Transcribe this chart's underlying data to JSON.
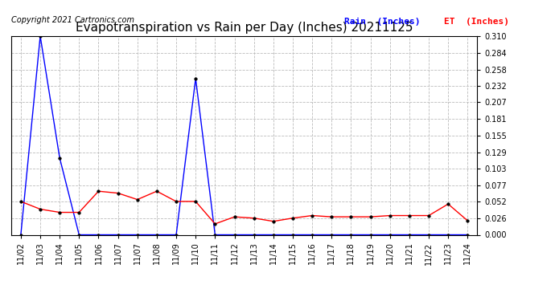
{
  "title": "Evapotranspiration vs Rain per Day (Inches) 20211125",
  "copyright": "Copyright 2021 Cartronics.com",
  "legend_rain": "Rain  (Inches)",
  "legend_et": "ET  (Inches)",
  "x_labels": [
    "11/02",
    "11/03",
    "11/04",
    "11/05",
    "11/06",
    "11/07",
    "11/07",
    "11/08",
    "11/09",
    "11/10",
    "11/11",
    "11/12",
    "11/13",
    "11/14",
    "11/15",
    "11/16",
    "11/17",
    "11/18",
    "11/19",
    "11/20",
    "11/21",
    "11/22",
    "11/23",
    "11/24"
  ],
  "rain": [
    0.0,
    0.31,
    0.12,
    0.0,
    0.0,
    0.0,
    0.0,
    0.0,
    0.0,
    0.244,
    0.0,
    0.0,
    0.0,
    0.0,
    0.0,
    0.0,
    0.0,
    0.0,
    0.0,
    0.0,
    0.0,
    0.0,
    0.0,
    0.0
  ],
  "et": [
    0.052,
    0.04,
    0.035,
    0.035,
    0.068,
    0.065,
    0.055,
    0.068,
    0.052,
    0.052,
    0.017,
    0.028,
    0.026,
    0.021,
    0.026,
    0.03,
    0.028,
    0.028,
    0.028,
    0.03,
    0.03,
    0.03,
    0.048,
    0.022
  ],
  "rain_color": "#0000FF",
  "et_color": "#FF0000",
  "background_color": "#FFFFFF",
  "grid_color": "#BBBBBB",
  "ylim": [
    0.0,
    0.31
  ],
  "yticks": [
    0.0,
    0.026,
    0.052,
    0.077,
    0.103,
    0.129,
    0.155,
    0.181,
    0.207,
    0.232,
    0.258,
    0.284,
    0.31
  ],
  "title_fontsize": 11,
  "tick_fontsize": 7,
  "copyright_fontsize": 7,
  "legend_fontsize": 8
}
